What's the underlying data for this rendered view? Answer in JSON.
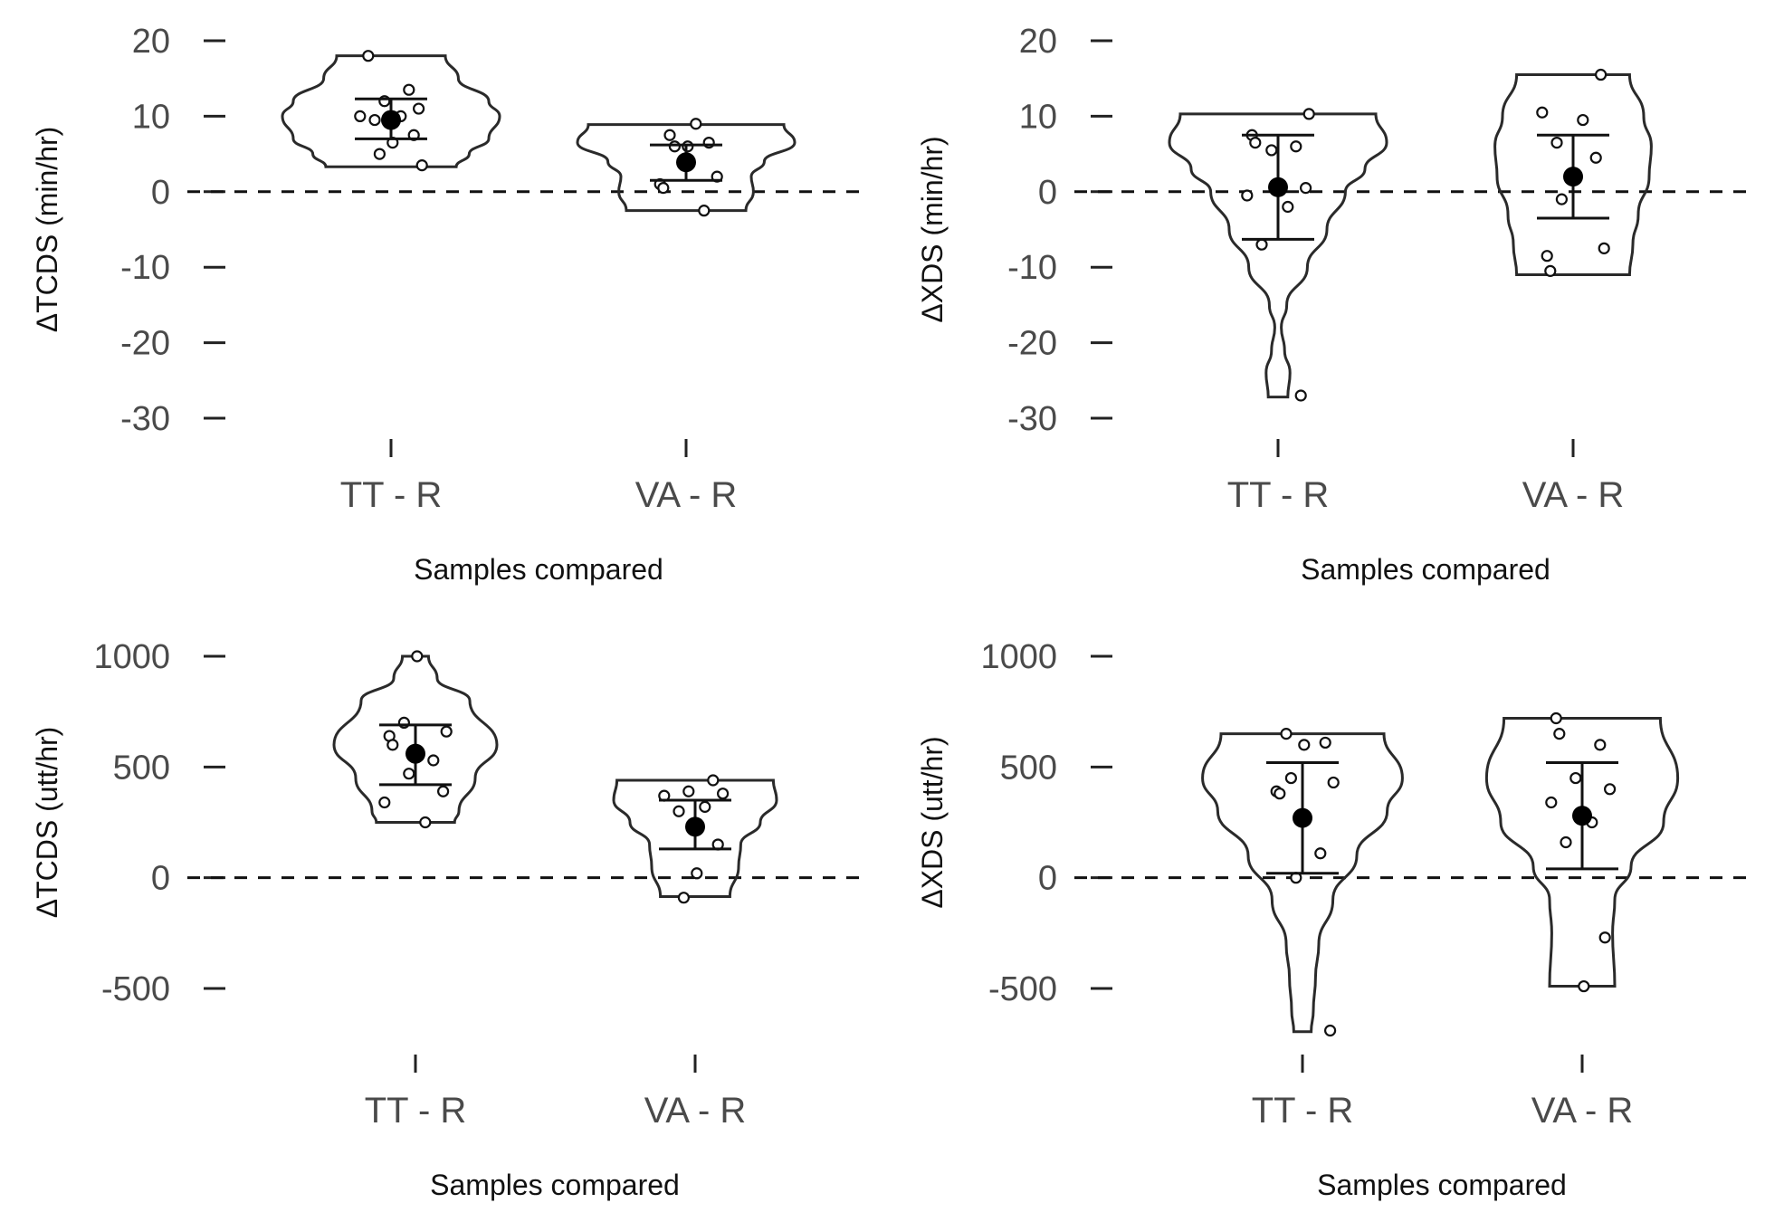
{
  "chart_data": [
    {
      "type": "violin",
      "ylabel": "ΔTCDS (min/hr)",
      "xlabel": "Samples compared",
      "categories": [
        "TT - R",
        "VA - R"
      ],
      "yticks": [
        20,
        10,
        0,
        -10,
        -20,
        -30
      ],
      "ytick_labels": [
        "20",
        "10",
        "0",
        "-10",
        "-20",
        "-30"
      ],
      "ylim": [
        -31,
        21
      ],
      "reference_line": 0,
      "groups": [
        {
          "points": [
            18,
            13.5,
            12,
            11,
            10,
            10,
            9.5,
            7.5,
            6.5,
            5,
            3.5
          ],
          "mean": 9.5,
          "error_low": 7,
          "error_high": 12.3,
          "violin": {
            "min": 3.3,
            "max": 18,
            "profile": [
              [
                18,
                0.5
              ],
              [
                15,
                0.62
              ],
              [
                12,
                0.9
              ],
              [
                10,
                1.0
              ],
              [
                7,
                0.9
              ],
              [
                5,
                0.72
              ],
              [
                3.3,
                0.6
              ]
            ]
          }
        },
        {
          "points": [
            9,
            7.5,
            6.5,
            6,
            6,
            2,
            1,
            0.5,
            -2.5
          ],
          "mean": 3.9,
          "error_low": 1.5,
          "error_high": 6.2,
          "violin": {
            "min": -2.5,
            "max": 8.9,
            "profile": [
              [
                8.9,
                0.9
              ],
              [
                6.5,
                1.0
              ],
              [
                4,
                0.72
              ],
              [
                2,
                0.6
              ],
              [
                0,
                0.62
              ],
              [
                -2.5,
                0.55
              ]
            ]
          }
        }
      ]
    },
    {
      "type": "violin",
      "ylabel": "ΔXDS (min/hr)",
      "xlabel": "Samples compared",
      "categories": [
        "TT - R",
        "VA - R"
      ],
      "yticks": [
        20,
        10,
        0,
        -10,
        -20,
        -30
      ],
      "ytick_labels": [
        "20",
        "10",
        "0",
        "-10",
        "-20",
        "-30"
      ],
      "ylim": [
        -31,
        21
      ],
      "reference_line": 0,
      "groups": [
        {
          "points": [
            10.3,
            7.5,
            6.5,
            6,
            5.5,
            0.5,
            -0.5,
            -2,
            -7,
            -27
          ],
          "mean": 0.6,
          "error_low": -6.3,
          "error_high": 7.5,
          "violin": {
            "min": -27.2,
            "max": 10.3,
            "profile": [
              [
                10.3,
                0.9
              ],
              [
                6.5,
                1.0
              ],
              [
                3,
                0.8
              ],
              [
                0,
                0.62
              ],
              [
                -5,
                0.45
              ],
              [
                -10,
                0.27
              ],
              [
                -15,
                0.08
              ],
              [
                -18,
                0.03
              ],
              [
                -21,
                0.06
              ],
              [
                -24,
                0.11
              ],
              [
                -27.2,
                0.09
              ]
            ]
          }
        },
        {
          "points": [
            15.5,
            10.5,
            9.5,
            6.5,
            4.5,
            2,
            -1,
            -7.5,
            -8.5,
            -10.5
          ],
          "mean": 2,
          "error_low": -3.5,
          "error_high": 7.5,
          "violin": {
            "min": -11,
            "max": 15.5,
            "profile": [
              [
                15.5,
                0.52
              ],
              [
                10,
                0.65
              ],
              [
                6,
                0.72
              ],
              [
                2,
                0.7
              ],
              [
                -3,
                0.6
              ],
              [
                -7,
                0.55
              ],
              [
                -11,
                0.52
              ]
            ]
          }
        }
      ]
    },
    {
      "type": "violin",
      "ylabel": "ΔTCDS (utt/hr)",
      "xlabel": "Samples compared",
      "categories": [
        "TT - R",
        "VA - R"
      ],
      "yticks": [
        1000,
        500,
        0,
        -500
      ],
      "ytick_labels": [
        "1000",
        "500",
        "0",
        "-500"
      ],
      "ylim": [
        -850,
        1050
      ],
      "reference_line": 0,
      "groups": [
        {
          "points": [
            1000,
            700,
            660,
            640,
            600,
            530,
            470,
            390,
            340,
            250
          ],
          "mean": 560,
          "error_low": 420,
          "error_high": 690,
          "violin": {
            "min": 250,
            "max": 1000,
            "profile": [
              [
                1000,
                0.12
              ],
              [
                900,
                0.2
              ],
              [
                800,
                0.5
              ],
              [
                600,
                0.75
              ],
              [
                450,
                0.55
              ],
              [
                300,
                0.4
              ],
              [
                250,
                0.36
              ]
            ]
          }
        },
        {
          "points": [
            440,
            390,
            380,
            370,
            320,
            300,
            150,
            20,
            -90
          ],
          "mean": 230,
          "error_low": 130,
          "error_high": 350,
          "violin": {
            "min": -85,
            "max": 440,
            "profile": [
              [
                440,
                0.72
              ],
              [
                350,
                0.75
              ],
              [
                250,
                0.6
              ],
              [
                150,
                0.42
              ],
              [
                50,
                0.4
              ],
              [
                -85,
                0.32
              ]
            ]
          }
        }
      ]
    },
    {
      "type": "violin",
      "ylabel": "ΔXDS (utt/hr)",
      "xlabel": "Samples compared",
      "categories": [
        "TT - R",
        "VA - R"
      ],
      "yticks": [
        1000,
        500,
        0,
        -500
      ],
      "ytick_labels": [
        "1000",
        "500",
        "0",
        "-500"
      ],
      "ylim": [
        -850,
        1050
      ],
      "reference_line": 0,
      "groups": [
        {
          "points": [
            650,
            610,
            600,
            450,
            430,
            390,
            380,
            110,
            0,
            -690
          ],
          "mean": 270,
          "error_low": 20,
          "error_high": 520,
          "violin": {
            "min": -695,
            "max": 650,
            "profile": [
              [
                650,
                0.75
              ],
              [
                450,
                0.92
              ],
              [
                300,
                0.78
              ],
              [
                100,
                0.5
              ],
              [
                -100,
                0.28
              ],
              [
                -300,
                0.15
              ],
              [
                -450,
                0.12
              ],
              [
                -600,
                0.1
              ],
              [
                -695,
                0.08
              ]
            ]
          }
        },
        {
          "points": [
            720,
            650,
            600,
            450,
            400,
            340,
            250,
            160,
            -270,
            -490
          ],
          "mean": 280,
          "error_low": 40,
          "error_high": 520,
          "violin": {
            "min": -490,
            "max": 720,
            "profile": [
              [
                720,
                0.72
              ],
              [
                450,
                0.88
              ],
              [
                250,
                0.75
              ],
              [
                50,
                0.45
              ],
              [
                -100,
                0.3
              ],
              [
                -250,
                0.28
              ],
              [
                -490,
                0.3
              ]
            ]
          }
        }
      ]
    }
  ]
}
